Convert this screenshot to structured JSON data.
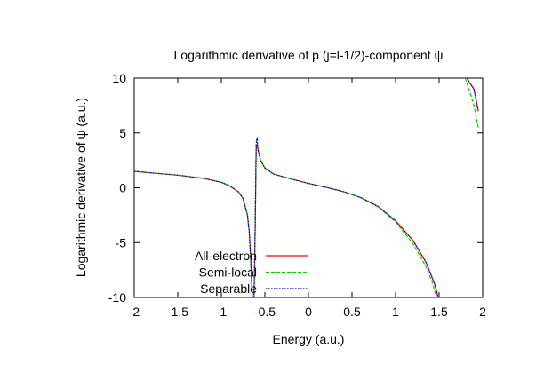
{
  "chart_data": {
    "type": "line",
    "title": "Logarithmic derivative of p (j=l-1/2)-component ψ",
    "xlabel": "Energy (a.u.)",
    "ylabel": "Logarithmic derivative of ψ (a.u.)",
    "xlim": [
      -2,
      2
    ],
    "ylim": [
      -10,
      10
    ],
    "x_ticks": [
      -2,
      -1.5,
      -1,
      -0.5,
      0,
      0.5,
      1,
      1.5,
      2
    ],
    "x_tick_labels": [
      "-2",
      "-1.5",
      "-1",
      "-0.5",
      "0",
      "0.5",
      "1",
      "1.5",
      "2"
    ],
    "y_ticks": [
      -10,
      -5,
      0,
      5,
      10
    ],
    "y_tick_labels": [
      "-10",
      "-5",
      "0",
      "5",
      "10"
    ],
    "grid": false,
    "legend_position": "bottom-left",
    "series": [
      {
        "name": "All-electron",
        "color": "#ff0000",
        "dash": "solid",
        "segments": [
          [
            [
              -2.0,
              1.5
            ],
            [
              -1.8,
              1.35
            ],
            [
              -1.5,
              1.15
            ],
            [
              -1.2,
              0.85
            ],
            [
              -1.0,
              0.5
            ],
            [
              -0.9,
              0.15
            ],
            [
              -0.8,
              -0.4
            ],
            [
              -0.75,
              -1.0
            ],
            [
              -0.7,
              -2.5
            ],
            [
              -0.68,
              -4.0
            ],
            [
              -0.66,
              -7.0
            ],
            [
              -0.645,
              -10.0
            ]
          ],
          [
            [
              -0.625,
              -10.0
            ],
            [
              -0.61,
              -3.0
            ],
            [
              -0.605,
              0.5
            ],
            [
              -0.6,
              3.5
            ],
            [
              -0.59,
              4.0
            ],
            [
              -0.58,
              3.5
            ],
            [
              -0.55,
              2.5
            ],
            [
              -0.5,
              1.8
            ],
            [
              -0.4,
              1.25
            ],
            [
              -0.2,
              0.8
            ],
            [
              0.0,
              0.4
            ],
            [
              0.2,
              0.05
            ],
            [
              0.4,
              -0.35
            ],
            [
              0.6,
              -0.9
            ],
            [
              0.8,
              -1.7
            ],
            [
              1.0,
              -3.0
            ],
            [
              1.2,
              -4.8
            ],
            [
              1.35,
              -6.8
            ],
            [
              1.45,
              -8.8
            ],
            [
              1.49,
              -10.0
            ]
          ],
          [
            [
              1.82,
              10.0
            ],
            [
              1.85,
              9.6
            ],
            [
              1.9,
              9.0
            ],
            [
              1.95,
              7.0
            ]
          ]
        ]
      },
      {
        "name": "Semi-local",
        "color": "#00cc00",
        "dash": "dashed",
        "segments": [
          [
            [
              -2.0,
              1.5
            ],
            [
              -1.8,
              1.35
            ],
            [
              -1.5,
              1.15
            ],
            [
              -1.2,
              0.85
            ],
            [
              -1.0,
              0.5
            ],
            [
              -0.9,
              0.15
            ],
            [
              -0.8,
              -0.4
            ],
            [
              -0.75,
              -1.0
            ],
            [
              -0.7,
              -2.5
            ],
            [
              -0.68,
              -4.0
            ],
            [
              -0.66,
              -7.0
            ],
            [
              -0.645,
              -10.0
            ]
          ],
          [
            [
              -0.625,
              -10.0
            ],
            [
              -0.61,
              -3.0
            ],
            [
              -0.605,
              0.5
            ],
            [
              -0.6,
              4.0
            ],
            [
              -0.59,
              4.6
            ],
            [
              -0.58,
              3.5
            ],
            [
              -0.55,
              2.5
            ],
            [
              -0.5,
              1.8
            ],
            [
              -0.4,
              1.25
            ],
            [
              -0.2,
              0.8
            ],
            [
              0.0,
              0.4
            ],
            [
              0.2,
              0.05
            ],
            [
              0.4,
              -0.35
            ],
            [
              0.6,
              -0.9
            ],
            [
              0.8,
              -1.75
            ],
            [
              1.0,
              -3.1
            ],
            [
              1.2,
              -5.1
            ],
            [
              1.35,
              -7.2
            ],
            [
              1.43,
              -8.8
            ],
            [
              1.47,
              -10.0
            ]
          ],
          [
            [
              1.8,
              10.0
            ],
            [
              1.85,
              8.8
            ],
            [
              1.9,
              7.5
            ],
            [
              1.95,
              5.5
            ]
          ]
        ]
      },
      {
        "name": "Separable",
        "color": "#0000cc",
        "dash": "dotted",
        "segments": [
          [
            [
              -2.0,
              1.5
            ],
            [
              -1.8,
              1.35
            ],
            [
              -1.5,
              1.15
            ],
            [
              -1.2,
              0.85
            ],
            [
              -1.0,
              0.5
            ],
            [
              -0.9,
              0.15
            ],
            [
              -0.8,
              -0.4
            ],
            [
              -0.75,
              -1.0
            ],
            [
              -0.7,
              -2.5
            ],
            [
              -0.68,
              -4.0
            ],
            [
              -0.66,
              -7.0
            ],
            [
              -0.645,
              -10.0
            ]
          ],
          [
            [
              -0.625,
              -10.0
            ],
            [
              -0.61,
              -3.0
            ],
            [
              -0.605,
              0.5
            ],
            [
              -0.6,
              4.0
            ],
            [
              -0.59,
              4.6
            ],
            [
              -0.58,
              3.5
            ],
            [
              -0.55,
              2.5
            ],
            [
              -0.5,
              1.8
            ],
            [
              -0.4,
              1.25
            ],
            [
              -0.2,
              0.8
            ],
            [
              0.0,
              0.4
            ],
            [
              0.2,
              0.05
            ],
            [
              0.4,
              -0.35
            ],
            [
              0.6,
              -0.9
            ],
            [
              0.8,
              -1.7
            ],
            [
              1.0,
              -3.0
            ],
            [
              1.2,
              -4.8
            ],
            [
              1.35,
              -6.8
            ],
            [
              1.45,
              -8.8
            ],
            [
              1.49,
              -10.0
            ]
          ],
          [
            [
              1.82,
              10.0
            ],
            [
              1.85,
              9.6
            ],
            [
              1.9,
              9.0
            ],
            [
              1.95,
              7.0
            ]
          ]
        ]
      }
    ]
  }
}
